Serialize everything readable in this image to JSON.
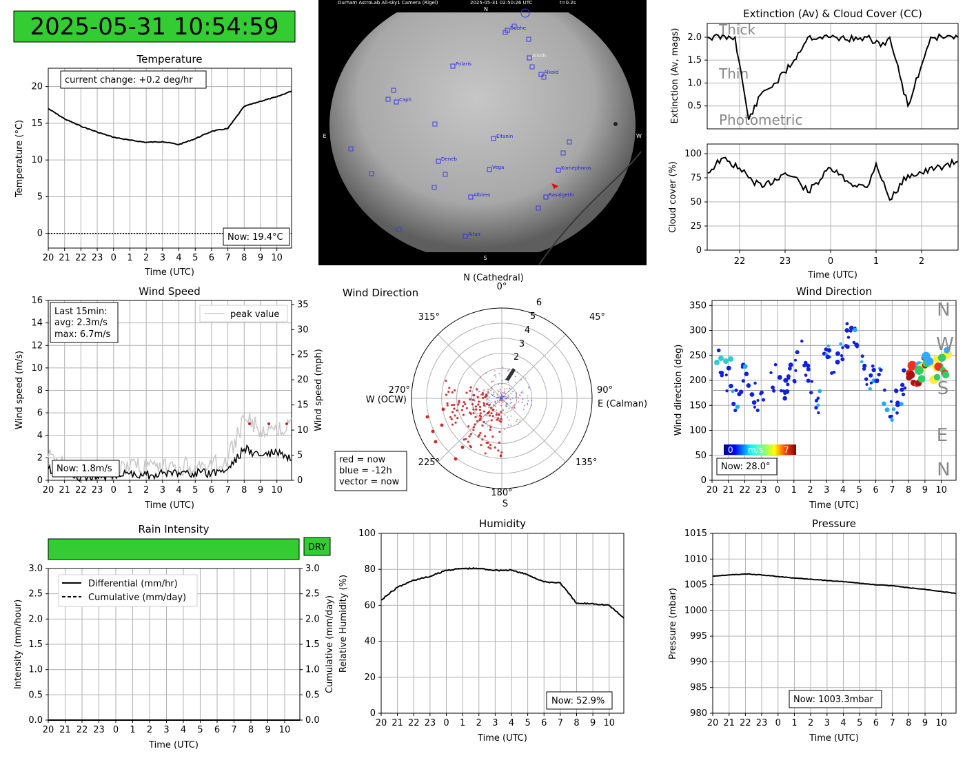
{
  "clock": {
    "value": "2025-05-31 10:54:59"
  },
  "hours_full": [
    "20",
    "21",
    "22",
    "23",
    "0",
    "1",
    "2",
    "3",
    "4",
    "5",
    "6",
    "7",
    "8",
    "9",
    "10"
  ],
  "temperature": {
    "title": "Temperature",
    "ylabel": "Temperature (°C)",
    "xlabel": "Time (UTC)",
    "yticks": [
      "0",
      "5",
      "10",
      "15",
      "20"
    ],
    "change": "current change: +0.2 deg/hr",
    "now": "Now: 19.4°C"
  },
  "allsky": {
    "header": "Durham AstroLab All-sky1 Camera (Rigel)",
    "timestamp": "2025-05-31 02:50:26 UTC",
    "exposure": "t=0.2s",
    "north": "N",
    "south": "S",
    "east": "E",
    "west": "W",
    "stars": [
      {
        "name": "Dubhe"
      },
      {
        "name": "Alioth"
      },
      {
        "name": "Polaris"
      },
      {
        "name": "Alkaid"
      },
      {
        "name": "Caph"
      },
      {
        "name": "Eltanin"
      },
      {
        "name": "Deneb"
      },
      {
        "name": "Vega"
      },
      {
        "name": "Kornephoros"
      },
      {
        "name": "Albireo"
      },
      {
        "name": "Rasalgethi"
      },
      {
        "name": "Altair"
      }
    ]
  },
  "extinction": {
    "title": "Extinction (Av) & Cloud Cover (CC)",
    "ylabel": "Extinction (Av, mags)",
    "yticks": [
      "0.5",
      "1.0",
      "1.5",
      "2.0"
    ],
    "bands": [
      "Thick",
      "Thin",
      "Photometric"
    ]
  },
  "cloud": {
    "ylabel": "Cloud cover (%)",
    "xlabel": "Time (UTC)",
    "yticks": [
      "0",
      "25",
      "50",
      "75",
      "100"
    ],
    "xticks": [
      "22",
      "23",
      "0",
      "1",
      "2"
    ]
  },
  "wind_speed": {
    "title": "Wind Speed",
    "ylabel": "Wind speed (m/s)",
    "ylabel_right": "Wind speed (mph)",
    "xlabel": "Time (UTC)",
    "yticks": [
      "0",
      "2",
      "4",
      "6",
      "8",
      "10",
      "12",
      "14",
      "16"
    ],
    "yticks_right": [
      "0",
      "5",
      "10",
      "15",
      "20",
      "25",
      "30",
      "35"
    ],
    "stats_line1": "Last 15min:",
    "stats_line2": "avg: 2.3m/s",
    "stats_line3": "max: 6.7m/s",
    "legend": "peak value",
    "now": "Now: 1.8m/s"
  },
  "wind_polar": {
    "title": "Wind Direction",
    "north_label": "N (Cathedral)",
    "east_label": "E (Calman)",
    "west_label": "W (OCW)",
    "south_label": "S",
    "angles": [
      "0°",
      "45°",
      "90°",
      "135°",
      "180°",
      "225°",
      "270°",
      "315°"
    ],
    "rticks": [
      "2",
      "3",
      "4",
      "5",
      "6"
    ],
    "legend_line1": "red = now",
    "legend_line2": "blue = -12h",
    "legend_line3": "vector = now"
  },
  "wind_dir": {
    "title": "Wind Direction",
    "ylabel": "Wind direction (deg)",
    "xlabel": "Time (UTC)",
    "yticks": [
      "0",
      "50",
      "100",
      "150",
      "200",
      "250",
      "300",
      "350"
    ],
    "compass": [
      "N",
      "W",
      "S",
      "E",
      "N"
    ],
    "cbar_min": "0",
    "cbar_unit": "m/s",
    "cbar_max": "7",
    "now": "Now: 28.0°"
  },
  "rain": {
    "title": "Rain Intensity",
    "status": "DRY",
    "ylabel": "Intensity (mm/hour)",
    "ylabel_right": "Cumulative (mm/day)",
    "xlabel": "Time (UTC)",
    "yticks": [
      "0.0",
      "0.5",
      "1.0",
      "1.5",
      "2.0",
      "2.5",
      "3.0"
    ],
    "legend1": "Differential (mm/hr)",
    "legend2": "Cumulative (mm/day)"
  },
  "humidity": {
    "title": "Humidity",
    "ylabel": "Relative Humidity (%)",
    "xlabel": "Time (UTC)",
    "yticks": [
      "0",
      "20",
      "40",
      "60",
      "80",
      "100"
    ],
    "now": "Now: 52.9%"
  },
  "pressure": {
    "title": "Pressure",
    "ylabel": "Pressure (mbar)",
    "xlabel": "Time (UTC)",
    "yticks": [
      "980",
      "985",
      "990",
      "995",
      "1000",
      "1005",
      "1010",
      "1015"
    ],
    "now": "Now: 1003.3mbar"
  },
  "colors": {
    "ok_green": "#33cc33",
    "now_red": "#cc2222",
    "past_blue": "#2244cc"
  },
  "chart_data": [
    {
      "type": "line",
      "title": "Temperature",
      "xlabel": "Time (UTC)",
      "ylabel": "Temperature (°C)",
      "ylim": [
        -2,
        22.5
      ],
      "x": [
        20,
        21,
        22,
        23,
        0,
        1,
        2,
        3,
        4,
        5,
        6,
        7,
        8,
        9,
        10,
        10.9
      ],
      "values": [
        17.0,
        15.6,
        14.6,
        13.8,
        13.1,
        12.7,
        12.4,
        12.5,
        12.1,
        12.9,
        13.9,
        14.3,
        17.3,
        18.0,
        18.6,
        19.4
      ]
    },
    {
      "type": "line",
      "title": "Extinction (Av) & Cloud Cover (CC)",
      "ylabel": "Extinction (Av, mags)",
      "ylim": [
        0,
        2.3
      ],
      "x": [
        21.3,
        21.9,
        22.2,
        22.5,
        22.8,
        23.2,
        23.5,
        0.0,
        0.6,
        0.8,
        1.1,
        1.3,
        1.7,
        2.2,
        2.8
      ],
      "values": [
        2.0,
        2.0,
        0.2,
        0.8,
        1.0,
        1.5,
        2.0,
        2.0,
        1.95,
        2.0,
        1.8,
        2.0,
        0.5,
        2.0,
        2.0
      ]
    },
    {
      "type": "line",
      "ylabel": "Cloud cover (%)",
      "xlabel": "Time (UTC)",
      "ylim": [
        0,
        110
      ],
      "x": [
        21.3,
        21.6,
        22.0,
        22.2,
        22.5,
        23.0,
        23.3,
        23.5,
        0.0,
        0.4,
        0.8,
        1.0,
        1.3,
        1.7,
        2.0,
        2.8
      ],
      "values": [
        80,
        95,
        85,
        75,
        65,
        80,
        72,
        60,
        85,
        70,
        65,
        90,
        52,
        78,
        80,
        92
      ]
    },
    {
      "type": "line",
      "title": "Wind Speed",
      "xlabel": "Time (UTC)",
      "ylabel": "Wind speed (m/s)",
      "ylim": [
        0,
        16
      ],
      "x": [
        20,
        21,
        22,
        23,
        0,
        1,
        2,
        3,
        4,
        5,
        6,
        7,
        8,
        9,
        10,
        10.9
      ],
      "series": [
        {
          "name": "peak value",
          "values": [
            2.0,
            1.5,
            0.8,
            0.8,
            1.0,
            1.2,
            1.0,
            1.0,
            1.2,
            1.3,
            1.3,
            1.8,
            5.5,
            4.5,
            4.2,
            5.5
          ]
        },
        {
          "values": [
            1.0,
            0.8,
            0.3,
            0.3,
            0.5,
            0.6,
            0.5,
            0.6,
            0.7,
            0.7,
            0.6,
            1.0,
            2.8,
            2.2,
            2.5,
            1.8
          ]
        }
      ]
    },
    {
      "type": "scatter",
      "title": "Wind Direction",
      "xlabel": "Time (UTC)",
      "ylabel": "Wind direction (deg)",
      "ylim": [
        0,
        360
      ],
      "x": [
        20.3,
        21,
        21.5,
        22,
        22.5,
        23,
        0,
        0.5,
        1,
        1.5,
        2,
        2.5,
        3,
        3.5,
        4,
        4.5,
        5,
        5.5,
        6,
        6.5,
        7,
        7.5,
        8,
        8.5,
        9,
        9.5,
        10,
        10.5
      ],
      "values": [
        240,
        200,
        160,
        230,
        170,
        160,
        210,
        180,
        220,
        260,
        200,
        160,
        260,
        230,
        270,
        310,
        250,
        200,
        230,
        180,
        140,
        170,
        230,
        210,
        240,
        220,
        240,
        230
      ]
    },
    {
      "type": "line",
      "title": "Rain Intensity",
      "xlabel": "Time (UTC)",
      "ylabel": "Intensity (mm/hour)",
      "ylim": [
        0,
        3
      ],
      "x": [
        20,
        10.9
      ],
      "series": [
        {
          "name": "Differential (mm/hr)",
          "values": [
            0,
            0
          ]
        },
        {
          "name": "Cumulative (mm/day)",
          "values": [
            0,
            0
          ]
        }
      ]
    },
    {
      "type": "line",
      "title": "Humidity",
      "xlabel": "Time (UTC)",
      "ylabel": "Relative Humidity (%)",
      "ylim": [
        0,
        100
      ],
      "x": [
        20,
        21,
        22,
        23,
        0,
        1,
        2,
        3,
        4,
        5,
        6,
        7,
        8,
        9,
        10,
        10.9
      ],
      "values": [
        63,
        70,
        74,
        76,
        79.5,
        80.5,
        80.5,
        79.5,
        79.5,
        77,
        73,
        72.5,
        61,
        61,
        60,
        52.9
      ]
    },
    {
      "type": "line",
      "title": "Pressure",
      "xlabel": "Time (UTC)",
      "ylabel": "Pressure (mbar)",
      "ylim": [
        980,
        1015
      ],
      "x": [
        20,
        21,
        22,
        23,
        0,
        1,
        2,
        3,
        4,
        5,
        6,
        7,
        8,
        9,
        10,
        10.9
      ],
      "values": [
        1006.7,
        1006.9,
        1007.1,
        1006.9,
        1006.6,
        1006.3,
        1006.1,
        1005.8,
        1005.6,
        1005.3,
        1005.0,
        1004.8,
        1004.4,
        1004.1,
        1003.7,
        1003.3
      ]
    }
  ]
}
